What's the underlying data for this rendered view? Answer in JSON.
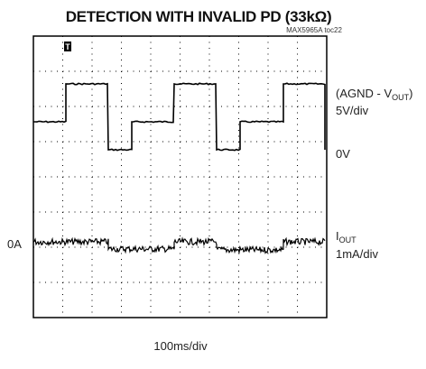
{
  "title": "DETECTION WITH INVALID PD (33kΩ)",
  "tag": "MAX5965A toc22",
  "trace1": {
    "label_start": "(AGND - V",
    "label_sub": "OUT",
    "label_end": ")",
    "scale": "5V/div",
    "zero": "0V"
  },
  "trace2": {
    "label_start": "I",
    "label_sub": "OUT",
    "scale": "1mA/div",
    "zero": "0A"
  },
  "timebase": "100ms/div"
}
